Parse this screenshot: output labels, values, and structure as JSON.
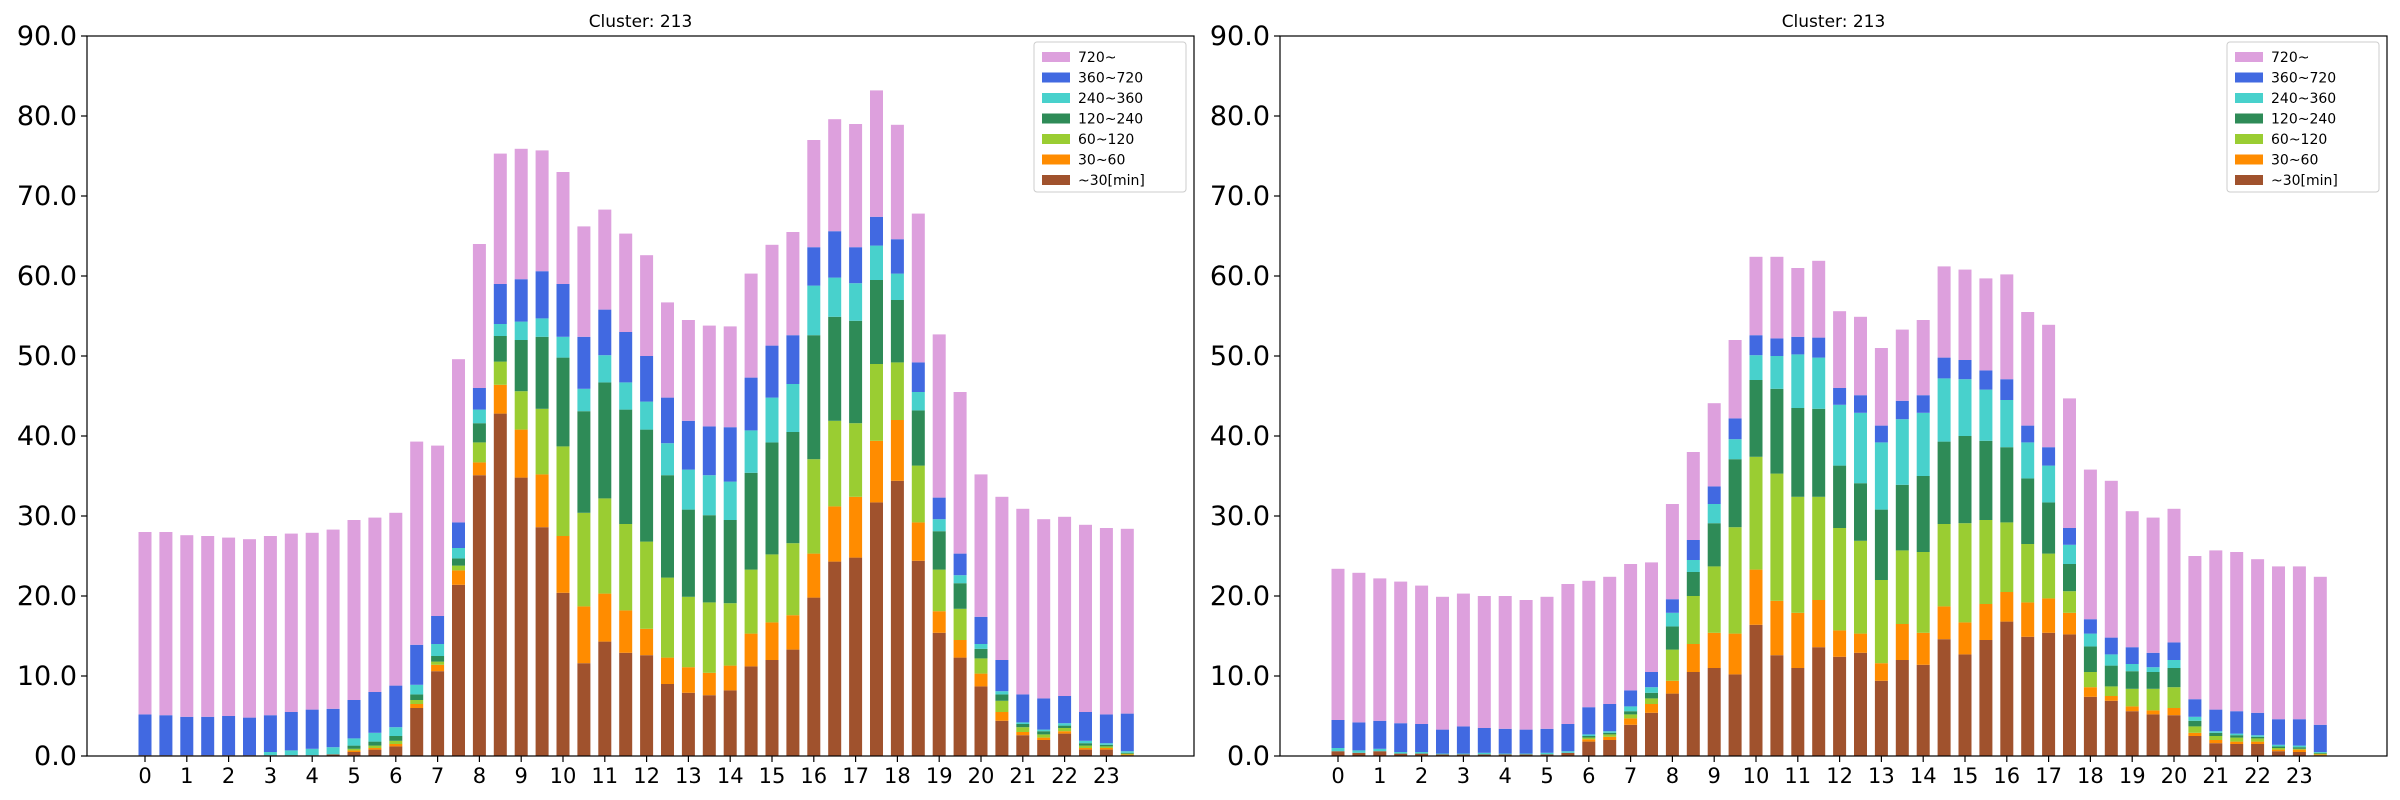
{
  "chart_data": [
    {
      "type": "bar",
      "stacked": true,
      "title": "Cluster: 213",
      "xlabel": "",
      "ylabel": "",
      "ylim": [
        0,
        90
      ],
      "yticks": [
        "0.0",
        "10.0",
        "20.0",
        "30.0",
        "40.0",
        "50.0",
        "60.0",
        "70.0",
        "80.0",
        "90.0"
      ],
      "xticks": [
        "0",
        "1",
        "2",
        "3",
        "4",
        "5",
        "6",
        "7",
        "8",
        "9",
        "10",
        "11",
        "12",
        "13",
        "14",
        "15",
        "16",
        "17",
        "18",
        "19",
        "20",
        "21",
        "22",
        "23"
      ],
      "legend_position": "top-right",
      "grid": false,
      "x": [
        0,
        0.5,
        1,
        1.5,
        2,
        2.5,
        3,
        3.5,
        4,
        4.5,
        5,
        5.5,
        6,
        6.5,
        7,
        7.5,
        8,
        8.5,
        9,
        9.5,
        10,
        10.5,
        11,
        11.5,
        12,
        12.5,
        13,
        13.5,
        14,
        14.5,
        15,
        15.5,
        16,
        16.5,
        17,
        17.5,
        18,
        18.5,
        19,
        19.5,
        20,
        20.5,
        21,
        21.5,
        22,
        22.5,
        23,
        23.5
      ],
      "series": [
        {
          "name": "~30[min]",
          "color": "#a0522d",
          "values": [
            0.1,
            0.1,
            0.1,
            0.1,
            0.1,
            0.1,
            0.1,
            0.1,
            0.1,
            0.2,
            0.5,
            0.8,
            1.2,
            6.0,
            10.6,
            21.4,
            35.1,
            42.8,
            34.8,
            28.6,
            20.4,
            11.6,
            14.3,
            12.9,
            12.6,
            9.0,
            7.9,
            7.6,
            8.2,
            11.2,
            12.0,
            13.3,
            19.8,
            24.3,
            24.8,
            31.7,
            34.4,
            24.4,
            15.4,
            12.3,
            8.7,
            4.4,
            2.6,
            2.0,
            2.8,
            0.8,
            0.8,
            0.1
          ]
        },
        {
          "name": "30~60",
          "color": "#ff8c00",
          "values": [
            0,
            0,
            0,
            0,
            0,
            0,
            0,
            0,
            0,
            0,
            0.2,
            0.2,
            0.3,
            0.5,
            0.8,
            1.8,
            1.6,
            3.6,
            6.0,
            6.6,
            7.1,
            7.1,
            6.0,
            5.3,
            3.3,
            3.3,
            3.2,
            2.8,
            3.1,
            4.1,
            4.7,
            4.3,
            5.5,
            6.9,
            7.6,
            7.7,
            7.6,
            4.8,
            2.7,
            2.2,
            1.6,
            1.1,
            0.4,
            0.3,
            0.3,
            0.2,
            0.2,
            0.1
          ]
        },
        {
          "name": "60~120",
          "color": "#9acd32",
          "values": [
            0,
            0,
            0,
            0,
            0,
            0,
            0,
            0,
            0,
            0,
            0.2,
            0.3,
            0.4,
            0.5,
            0.4,
            0.6,
            2.5,
            2.9,
            4.8,
            8.2,
            11.2,
            11.7,
            11.9,
            10.8,
            10.9,
            10.0,
            8.8,
            8.8,
            7.8,
            8.0,
            8.5,
            9.0,
            11.8,
            10.7,
            9.2,
            9.6,
            7.2,
            7.1,
            5.2,
            3.9,
            1.9,
            1.4,
            0.6,
            0.4,
            0.4,
            0.3,
            0.2,
            0.1
          ]
        },
        {
          "name": "120~240",
          "color": "#2e8b57",
          "values": [
            0,
            0,
            0,
            0,
            0,
            0,
            0,
            0,
            0,
            0,
            0.4,
            0.5,
            0.6,
            0.7,
            0.7,
            0.9,
            2.4,
            3.2,
            6.4,
            9.0,
            11.1,
            12.7,
            14.5,
            14.3,
            14.0,
            12.8,
            10.9,
            10.9,
            10.4,
            12.1,
            14.0,
            13.9,
            15.5,
            13.0,
            12.8,
            10.5,
            7.8,
            6.9,
            4.8,
            3.2,
            1.2,
            0.8,
            0.4,
            0.4,
            0.3,
            0.3,
            0.2,
            0.1
          ]
        },
        {
          "name": "240~360",
          "color": "#48d1cc",
          "values": [
            0,
            0,
            0,
            0,
            0,
            0,
            0.4,
            0.6,
            0.8,
            0.9,
            0.9,
            1.1,
            1.1,
            1.2,
            1.5,
            1.3,
            1.7,
            1.5,
            2.3,
            2.3,
            2.6,
            2.8,
            3.4,
            3.4,
            3.5,
            4.0,
            5.0,
            5.0,
            4.8,
            5.3,
            5.6,
            6.0,
            6.2,
            4.9,
            4.7,
            4.3,
            3.3,
            2.3,
            1.5,
            1.0,
            0.6,
            0.4,
            0.2,
            0.2,
            0.3,
            0.3,
            0.2,
            0.2
          ]
        },
        {
          "name": "360~720",
          "color": "#4169e1",
          "values": [
            5.1,
            5.0,
            4.8,
            4.8,
            4.9,
            4.7,
            4.6,
            4.8,
            4.9,
            4.8,
            4.8,
            5.1,
            5.2,
            5.0,
            3.5,
            3.2,
            2.7,
            5.0,
            5.3,
            5.9,
            6.6,
            6.5,
            5.7,
            6.3,
            5.7,
            5.7,
            6.1,
            6.1,
            6.8,
            6.6,
            6.5,
            6.1,
            4.8,
            5.8,
            4.5,
            3.6,
            4.3,
            3.7,
            2.7,
            2.7,
            3.4,
            3.9,
            3.5,
            3.9,
            3.4,
            3.6,
            3.6,
            4.7
          ]
        },
        {
          "name": "720~",
          "color": "#dda0dd",
          "values": [
            22.8,
            22.9,
            22.7,
            22.6,
            22.3,
            22.3,
            22.4,
            22.3,
            22.1,
            22.4,
            22.5,
            21.8,
            21.6,
            25.4,
            21.3,
            20.4,
            18.0,
            16.3,
            16.3,
            15.1,
            14.0,
            13.8,
            12.5,
            12.3,
            12.6,
            11.9,
            12.6,
            12.6,
            12.6,
            13.0,
            12.6,
            12.9,
            13.4,
            14.0,
            15.4,
            15.8,
            14.3,
            18.6,
            20.4,
            20.2,
            17.8,
            20.4,
            23.2,
            22.4,
            22.4,
            23.4,
            23.3,
            23.1
          ]
        }
      ]
    },
    {
      "type": "bar",
      "stacked": true,
      "title": "Cluster: 213",
      "xlabel": "",
      "ylabel": "",
      "ylim": [
        0,
        90
      ],
      "yticks": [
        "0.0",
        "10.0",
        "20.0",
        "30.0",
        "40.0",
        "50.0",
        "60.0",
        "70.0",
        "80.0",
        "90.0"
      ],
      "xticks": [
        "0",
        "1",
        "2",
        "3",
        "4",
        "5",
        "6",
        "7",
        "8",
        "9",
        "10",
        "11",
        "12",
        "13",
        "14",
        "15",
        "16",
        "17",
        "18",
        "19",
        "20",
        "21",
        "22",
        "23"
      ],
      "legend_position": "top-right",
      "grid": false,
      "x": [
        0,
        0.5,
        1,
        1.5,
        2,
        2.5,
        3,
        3.5,
        4,
        4.5,
        5,
        5.5,
        6,
        6.5,
        7,
        7.5,
        8,
        8.5,
        9,
        9.5,
        10,
        10.5,
        11,
        11.5,
        12,
        12.5,
        13,
        13.5,
        14,
        14.5,
        15,
        15.5,
        16,
        16.5,
        17,
        17.5,
        18,
        18.5,
        19,
        19.5,
        20,
        20.5,
        21,
        21.5,
        22,
        22.5,
        23,
        23.5
      ],
      "series": [
        {
          "name": "~30[min]",
          "color": "#a0522d",
          "values": [
            0.6,
            0.4,
            0.6,
            0.3,
            0.3,
            0.2,
            0.2,
            0.2,
            0.2,
            0.2,
            0.2,
            0.4,
            1.8,
            2.0,
            3.9,
            5.4,
            7.8,
            10.5,
            11.0,
            10.2,
            16.4,
            12.6,
            11.0,
            13.6,
            12.4,
            12.9,
            9.4,
            12.0,
            11.4,
            14.6,
            12.7,
            14.5,
            16.8,
            14.9,
            15.4,
            15.2,
            7.4,
            6.9,
            5.6,
            5.2,
            5.1,
            2.5,
            1.6,
            1.5,
            1.5,
            0.6,
            0.5,
            0.1
          ]
        },
        {
          "name": "30~60",
          "color": "#ff8c00",
          "values": [
            0,
            0,
            0,
            0,
            0,
            0,
            0,
            0,
            0,
            0,
            0,
            0,
            0.3,
            0.4,
            0.8,
            1.1,
            1.6,
            3.5,
            4.4,
            5.1,
            6.9,
            6.8,
            6.9,
            5.9,
            3.3,
            2.4,
            2.2,
            4.5,
            4.0,
            4.1,
            4.0,
            4.5,
            3.7,
            4.3,
            4.3,
            2.7,
            1.2,
            0.6,
            0.6,
            0.5,
            0.9,
            0.4,
            0.4,
            0.3,
            0.3,
            0.2,
            0.3,
            0.1
          ]
        },
        {
          "name": "60~120",
          "color": "#9acd32",
          "values": [
            0,
            0,
            0,
            0,
            0,
            0,
            0,
            0,
            0,
            0,
            0,
            0,
            0.2,
            0.3,
            0.5,
            0.7,
            3.9,
            6.0,
            8.3,
            13.3,
            14.1,
            15.9,
            14.5,
            12.9,
            12.8,
            11.6,
            10.4,
            9.2,
            10.1,
            10.3,
            12.4,
            10.5,
            8.7,
            7.3,
            5.6,
            2.7,
            1.9,
            1.2,
            2.2,
            2.7,
            2.6,
            0.8,
            0.5,
            0.5,
            0.4,
            0.2,
            0.1,
            0.1
          ]
        },
        {
          "name": "120~240",
          "color": "#2e8b57",
          "values": [
            0,
            0,
            0,
            0,
            0,
            0,
            0,
            0,
            0,
            0,
            0,
            0,
            0.2,
            0.2,
            0.4,
            0.7,
            2.9,
            3.0,
            5.4,
            8.5,
            9.6,
            10.6,
            11.1,
            11.0,
            7.8,
            7.2,
            8.8,
            8.2,
            9.5,
            10.3,
            10.9,
            9.9,
            9.4,
            8.2,
            6.4,
            3.4,
            3.2,
            2.6,
            2.2,
            2.1,
            2.4,
            0.7,
            0.4,
            0.3,
            0.2,
            0.2,
            0.2,
            0.1
          ]
        },
        {
          "name": "240~360",
          "color": "#48d1cc",
          "values": [
            0.4,
            0.3,
            0.3,
            0.2,
            0.2,
            0.1,
            0.1,
            0.2,
            0.1,
            0.1,
            0.2,
            0.2,
            0.2,
            0.2,
            0.6,
            0.7,
            1.7,
            1.5,
            2.4,
            2.5,
            3.1,
            4.1,
            6.7,
            6.4,
            7.6,
            8.8,
            8.4,
            8.2,
            7.9,
            7.9,
            7.1,
            6.4,
            5.9,
            4.5,
            4.6,
            2.4,
            1.6,
            1.4,
            0.9,
            0.6,
            1.0,
            0.5,
            0.2,
            0.2,
            0.2,
            0.2,
            0.2,
            0.1
          ]
        },
        {
          "name": "360~720",
          "color": "#4169e1",
          "values": [
            3.5,
            3.5,
            3.5,
            3.6,
            3.5,
            3.0,
            3.4,
            3.1,
            3.1,
            3.0,
            3.0,
            3.4,
            3.4,
            3.4,
            2.0,
            1.9,
            1.7,
            2.5,
            2.2,
            2.6,
            2.5,
            2.2,
            2.2,
            2.5,
            2.1,
            2.2,
            2.1,
            2.3,
            2.2,
            2.6,
            2.4,
            2.4,
            2.6,
            2.1,
            2.3,
            2.1,
            1.8,
            2.1,
            2.1,
            1.8,
            2.2,
            2.2,
            2.7,
            2.8,
            2.8,
            3.2,
            3.3,
            3.4
          ]
        },
        {
          "name": "720~",
          "color": "#dda0dd",
          "values": [
            18.9,
            18.7,
            17.8,
            17.7,
            17.3,
            16.6,
            16.6,
            16.5,
            16.6,
            16.2,
            16.5,
            17.5,
            15.8,
            15.9,
            15.8,
            13.7,
            11.9,
            11.0,
            10.4,
            9.8,
            9.8,
            10.2,
            8.6,
            9.6,
            9.6,
            9.8,
            9.7,
            8.9,
            9.4,
            11.4,
            11.3,
            11.5,
            13.1,
            14.2,
            15.3,
            16.2,
            18.7,
            19.6,
            17.0,
            16.9,
            16.7,
            17.9,
            19.9,
            19.9,
            19.2,
            19.1,
            19.1,
            18.5
          ]
        }
      ]
    }
  ]
}
